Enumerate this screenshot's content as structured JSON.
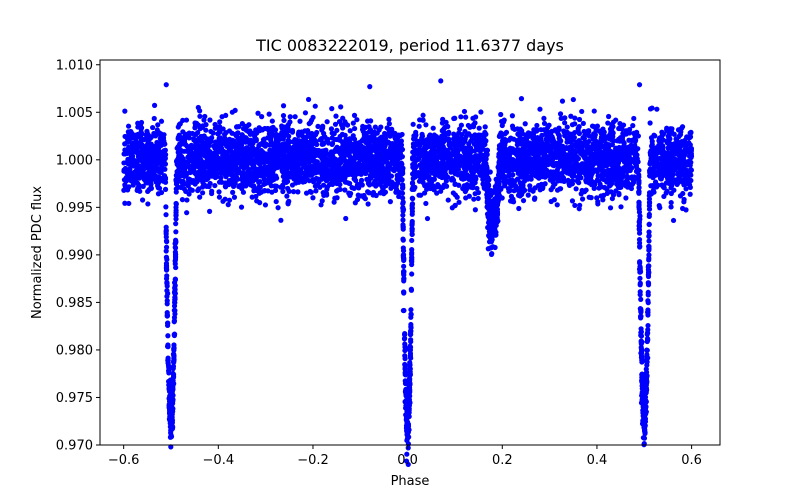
{
  "chart_data": {
    "type": "scatter",
    "title": "TIC 0083222019, period 11.6377 days",
    "xlabel": "Phase",
    "ylabel": "Normalized PDC flux",
    "xlim": [
      -0.65,
      0.66
    ],
    "ylim": [
      0.97,
      1.0105
    ],
    "x_ticks": [
      -0.6,
      -0.4,
      -0.2,
      0.0,
      0.2,
      0.4,
      0.6
    ],
    "x_tick_labels": [
      "−0.6",
      "−0.4",
      "−0.2",
      "0.0",
      "0.2",
      "0.4",
      "0.6"
    ],
    "y_ticks": [
      0.97,
      0.975,
      0.98,
      0.985,
      0.99,
      0.995,
      1.0,
      1.005,
      1.01
    ],
    "y_tick_labels": [
      "0.970",
      "0.975",
      "0.980",
      "0.985",
      "0.990",
      "0.995",
      "1.000",
      "1.005",
      "1.010"
    ],
    "grid": false,
    "series": [
      {
        "name": "PDC flux",
        "color": "#0000ff",
        "marker": "circle",
        "phase_range": [
          -0.6,
          0.6
        ],
        "baseline_flux": 1.0,
        "scatter_std": 0.0019,
        "primary_eclipses": [
          {
            "center_phase": -0.5,
            "min_flux": 0.9727,
            "half_width_phase": 0.012
          },
          {
            "center_phase": 0.0,
            "min_flux": 0.9719,
            "half_width_phase": 0.011
          },
          {
            "center_phase": 0.5,
            "min_flux": 0.9727,
            "half_width_phase": 0.012
          }
        ],
        "secondary_eclipses": [
          {
            "center_phase": 0.18,
            "min_flux": 0.993,
            "half_width_phase": 0.015
          }
        ],
        "noted_points": [
          {
            "x": 0.07,
            "y": 1.0083
          },
          {
            "x": -0.51,
            "y": 1.0079
          },
          {
            "x": 0.49,
            "y": 1.0079
          },
          {
            "x": -0.08,
            "y": 1.0077
          }
        ]
      }
    ]
  }
}
